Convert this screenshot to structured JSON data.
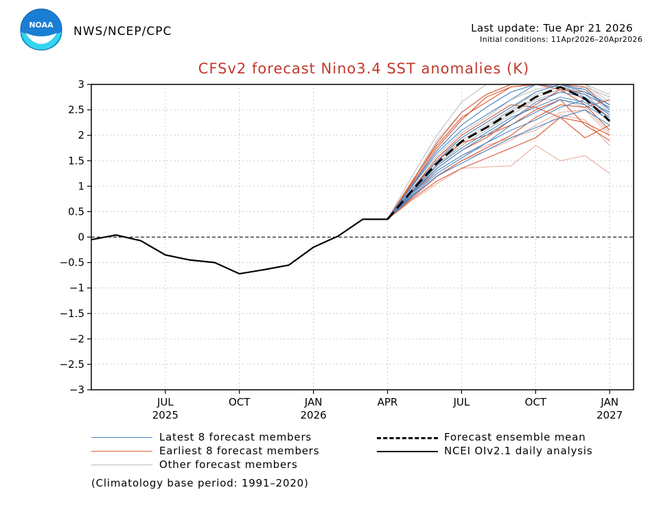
{
  "header": {
    "agency": "NWS/NCEP/CPC",
    "last_update": "Last update: Tue Apr 21 2026",
    "initial_conditions": "Initial conditions: 11Apr2026–20Apr2026",
    "logo_text": "NOAA"
  },
  "colors": {
    "title": "#c0392b",
    "latest": "#4a86c5",
    "earliest": "#d9603b",
    "other": "#b8b8b8",
    "other_red": "#e9a79a",
    "mean": "#000000",
    "observed": "#000000"
  },
  "chart_data": {
    "type": "line",
    "title": "CFSv2 forecast Nino3.4 SST anomalies (K)",
    "ylim": [
      -3,
      3
    ],
    "yticks": [
      "3",
      "2.5",
      "2",
      "1.5",
      "1",
      "0.5",
      "0",
      "−0.5",
      "−1",
      "−1.5",
      "−2",
      "−2.5",
      "−3"
    ],
    "ytick_values": [
      3,
      2.5,
      2,
      1.5,
      1,
      0.5,
      0,
      -0.5,
      -1,
      -1.5,
      -2,
      -2.5,
      -3
    ],
    "xticks": [
      {
        "month": "JUL",
        "year": "2025",
        "t": 3
      },
      {
        "month": "OCT",
        "year": "",
        "t": 6
      },
      {
        "month": "JAN",
        "year": "2026",
        "t": 9
      },
      {
        "month": "APR",
        "year": "",
        "t": 12
      },
      {
        "month": "JUL",
        "year": "",
        "t": 15
      },
      {
        "month": "OCT",
        "year": "",
        "t": 18
      },
      {
        "month": "JAN",
        "year": "2027",
        "t": 21
      }
    ],
    "xlim": [
      0,
      21.97
    ],
    "grid": true,
    "zero_line": "dashed",
    "observed": {
      "name": "NCEI OIv2.1 daily analysis",
      "x": [
        0,
        1,
        2,
        3,
        4,
        5,
        6,
        7,
        8,
        9,
        10,
        11,
        12
      ],
      "y": [
        -0.05,
        0.04,
        -0.07,
        -0.35,
        -0.45,
        -0.5,
        -0.72,
        -0.64,
        -0.55,
        -0.2,
        0.02,
        0.35,
        0.35
      ]
    },
    "ensemble_mean": {
      "name": "Forecast ensemble mean",
      "x": [
        12,
        13,
        14,
        15,
        16,
        17,
        18,
        19,
        20,
        21
      ],
      "y": [
        0.35,
        0.92,
        1.45,
        1.88,
        2.15,
        2.45,
        2.75,
        2.95,
        2.72,
        2.28
      ]
    },
    "latest_members": {
      "name": "Latest 8 forecast members",
      "x": [
        12,
        13,
        14,
        15,
        16,
        17,
        18,
        19,
        20,
        21
      ],
      "y": [
        [
          0.35,
          0.85,
          1.3,
          1.6,
          1.85,
          2.1,
          2.3,
          2.55,
          2.7,
          2.45
        ],
        [
          0.35,
          0.95,
          1.5,
          1.95,
          2.25,
          2.55,
          2.85,
          3.0,
          2.85,
          2.6
        ],
        [
          0.35,
          0.8,
          1.2,
          1.45,
          1.7,
          1.95,
          2.15,
          2.35,
          2.5,
          2.2
        ],
        [
          0.35,
          1.0,
          1.65,
          2.1,
          2.4,
          2.7,
          3.0,
          3.0,
          2.9,
          2.5
        ],
        [
          0.35,
          0.9,
          1.4,
          1.75,
          2.05,
          2.35,
          2.55,
          2.75,
          2.65,
          2.35
        ],
        [
          0.35,
          0.88,
          1.35,
          1.7,
          2.0,
          2.3,
          2.65,
          2.85,
          2.75,
          2.4
        ],
        [
          0.35,
          1.02,
          1.7,
          2.2,
          2.55,
          2.85,
          3.0,
          2.95,
          2.8,
          2.55
        ],
        [
          0.35,
          0.82,
          1.25,
          1.55,
          1.85,
          2.2,
          2.45,
          2.7,
          2.6,
          2.3
        ]
      ]
    },
    "earliest_members": {
      "name": "Earliest 8 forecast members",
      "x": [
        12,
        13,
        14,
        15,
        16,
        17,
        18,
        19,
        20,
        21
      ],
      "y": [
        [
          0.35,
          1.05,
          1.75,
          2.3,
          2.75,
          2.95,
          3.0,
          2.9,
          2.6,
          2.1
        ],
        [
          0.35,
          0.75,
          1.1,
          1.35,
          1.55,
          1.75,
          1.95,
          2.35,
          2.25,
          2.0
        ],
        [
          0.35,
          1.1,
          1.8,
          2.35,
          2.65,
          2.95,
          3.0,
          3.0,
          2.95,
          2.5
        ],
        [
          0.35,
          0.9,
          1.5,
          1.85,
          2.0,
          2.2,
          2.5,
          2.7,
          2.2,
          1.9
        ],
        [
          0.35,
          0.95,
          1.55,
          2.0,
          2.3,
          2.6,
          2.55,
          2.35,
          1.95,
          2.2
        ],
        [
          0.35,
          1.08,
          1.85,
          2.45,
          2.8,
          3.0,
          3.0,
          2.95,
          2.7,
          2.35
        ],
        [
          0.35,
          0.85,
          1.35,
          1.7,
          1.95,
          2.3,
          2.6,
          2.9,
          2.85,
          2.6
        ],
        [
          0.35,
          0.78,
          1.2,
          1.5,
          1.75,
          2.0,
          2.35,
          2.6,
          2.55,
          2.7
        ]
      ]
    },
    "other_members": {
      "name": "Other forecast members",
      "x": [
        12,
        13,
        14,
        15,
        16,
        17,
        18,
        19,
        20,
        21
      ],
      "y": [
        [
          0.35,
          1.2,
          2.0,
          2.65,
          3.0,
          3.0,
          3.0,
          3.0,
          3.0,
          2.8
        ],
        [
          0.35,
          0.72,
          1.05,
          1.35,
          1.38,
          1.4,
          1.8,
          1.5,
          1.6,
          1.25
        ],
        [
          0.35,
          1.1,
          1.9,
          2.45,
          2.8,
          3.0,
          3.0,
          3.0,
          2.85,
          2.3
        ],
        [
          0.35,
          0.9,
          1.45,
          1.8,
          2.1,
          2.4,
          2.7,
          2.85,
          2.95,
          2.75
        ],
        [
          0.35,
          0.8,
          1.3,
          1.6,
          1.8,
          1.95,
          2.1,
          2.4,
          2.3,
          1.8
        ],
        [
          0.35,
          1.0,
          1.6,
          2.05,
          2.35,
          2.7,
          2.9,
          3.0,
          3.0,
          2.65
        ],
        [
          0.35,
          0.85,
          1.4,
          1.8,
          2.1,
          2.45,
          2.75,
          2.9,
          2.8,
          2.4
        ],
        [
          0.35,
          0.95,
          1.55,
          1.95,
          2.25,
          2.55,
          2.8,
          2.95,
          2.9,
          2.45
        ],
        [
          0.35,
          0.78,
          1.18,
          1.5,
          1.7,
          1.9,
          2.2,
          2.45,
          2.5,
          2.0
        ],
        [
          0.35,
          1.05,
          1.7,
          2.2,
          2.55,
          2.85,
          3.0,
          3.0,
          2.95,
          2.6
        ],
        [
          0.35,
          0.88,
          1.42,
          1.85,
          2.15,
          2.5,
          2.7,
          2.7,
          2.55,
          2.05
        ],
        [
          0.35,
          0.92,
          1.5,
          1.9,
          2.2,
          2.5,
          2.85,
          3.0,
          2.75,
          2.25
        ]
      ]
    }
  },
  "legend": {
    "latest": "Latest 8 forecast members",
    "earliest": "Earliest 8 forecast members",
    "other": "Other forecast members",
    "mean": "Forecast ensemble mean",
    "observed": "NCEI OIv2.1 daily analysis",
    "climatology": "(Climatology base period: 1991–2020)"
  }
}
